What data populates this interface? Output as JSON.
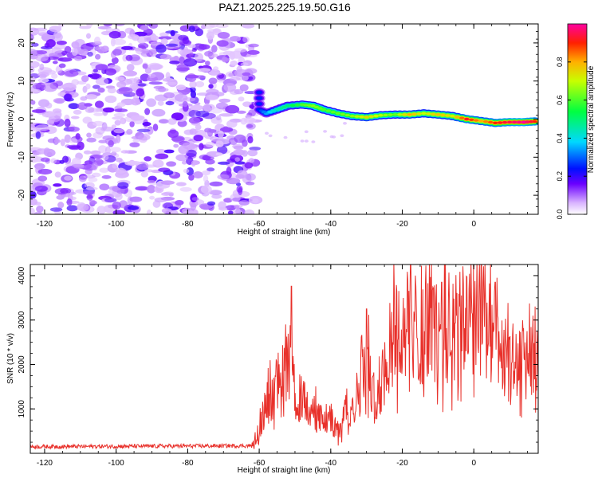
{
  "title": "PAZ1.2025.225.19.50.G16",
  "colors": {
    "snr_line": "#e8302a",
    "colormap": [
      "#ffffff",
      "#e6d3ff",
      "#c9a6ff",
      "#a066ff",
      "#7a1ff0",
      "#3300ff",
      "#0055ff",
      "#00c8ff",
      "#00ff7a",
      "#a6ff00",
      "#ffe600",
      "#ff8c00",
      "#ff2000",
      "#ff00a0"
    ]
  },
  "chart_data": [
    {
      "type": "heatmap",
      "title": "PAZ1.2025.225.19.50.G16",
      "xlabel": "Height of straight line (km)",
      "ylabel": "Frequency (Hz)",
      "xlim": [
        -124,
        18
      ],
      "ylim": [
        -25,
        25
      ],
      "xticks": [
        -120,
        -100,
        -80,
        -60,
        -40,
        -20,
        0
      ],
      "yticks": [
        -20,
        -10,
        0,
        10,
        20
      ],
      "colorbar": {
        "label": "Normalized spectral amplitude",
        "range": [
          0,
          1
        ],
        "ticks": [
          "0.0",
          "0.2",
          "0.4",
          "0.6",
          "0.8"
        ],
        "colormap": "rainbow-white (low=white/purple, high=red/magenta)"
      },
      "noise_region": {
        "x_range": [
          -124,
          -61
        ],
        "amplitude": [
          0.05,
          0.25
        ]
      },
      "signal_track": [
        {
          "x": -60,
          "freq": 7.0,
          "amp": 0.25
        },
        {
          "x": -60,
          "freq": 2.5,
          "amp": 0.25
        },
        {
          "x": -58,
          "freq": 1.5,
          "amp": 0.35
        },
        {
          "x": -55,
          "freq": 2.5,
          "amp": 0.45
        },
        {
          "x": -52,
          "freq": 3.5,
          "amp": 0.5
        },
        {
          "x": -48,
          "freq": 3.8,
          "amp": 0.6
        },
        {
          "x": -45,
          "freq": 3.5,
          "amp": 0.65
        },
        {
          "x": -42,
          "freq": 2.5,
          "amp": 0.6
        },
        {
          "x": -38,
          "freq": 1.5,
          "amp": 0.62
        },
        {
          "x": -34,
          "freq": 0.8,
          "amp": 0.65
        },
        {
          "x": -30,
          "freq": 0.5,
          "amp": 0.75
        },
        {
          "x": -26,
          "freq": 1.0,
          "amp": 0.68
        },
        {
          "x": -22,
          "freq": 1.2,
          "amp": 0.62
        },
        {
          "x": -18,
          "freq": 1.2,
          "amp": 0.8
        },
        {
          "x": -14,
          "freq": 1.5,
          "amp": 0.7
        },
        {
          "x": -10,
          "freq": 1.2,
          "amp": 0.78
        },
        {
          "x": -6,
          "freq": 0.8,
          "amp": 0.72
        },
        {
          "x": -2,
          "freq": 0.0,
          "amp": 0.92
        },
        {
          "x": 2,
          "freq": -0.5,
          "amp": 0.8
        },
        {
          "x": 6,
          "freq": -1.0,
          "amp": 0.9
        },
        {
          "x": 10,
          "freq": -0.8,
          "amp": 0.95
        },
        {
          "x": 14,
          "freq": -0.8,
          "amp": 1.0
        },
        {
          "x": 17,
          "freq": -0.6,
          "amp": 0.9
        }
      ]
    },
    {
      "type": "line",
      "xlabel": "Height of straight line (km)",
      "ylabel": "SNR (10 * v/v)",
      "xlim": [
        -124,
        18
      ],
      "ylim": [
        0,
        4250
      ],
      "xticks": [
        -120,
        -100,
        -80,
        -60,
        -40,
        -20,
        0
      ],
      "yticks": [
        1000,
        2000,
        3000,
        4000
      ],
      "series": [
        {
          "x": [
            -124,
            -62,
            -60,
            -58,
            -56,
            -54,
            -52,
            -50,
            -48,
            -46,
            -44,
            -42,
            -40,
            -38,
            -36,
            -34,
            -32,
            -30,
            -28,
            -26,
            -24,
            -22,
            -20,
            -18,
            -16,
            -14,
            -12,
            -10,
            -8,
            -6,
            -4,
            -2,
            0,
            2,
            4,
            6,
            8,
            10,
            12,
            14,
            16,
            18
          ],
          "values": [
            150,
            170,
            550,
            1100,
            1400,
            1700,
            2300,
            1300,
            1200,
            1000,
            900,
            700,
            750,
            500,
            900,
            1100,
            1400,
            2700,
            1300,
            1500,
            2200,
            2900,
            2600,
            3000,
            2800,
            2700,
            3200,
            2500,
            3300,
            3000,
            2800,
            3100,
            3400,
            3600,
            2700,
            2500,
            2000,
            2100,
            2000,
            2100,
            2200,
            2400
          ],
          "peaks": [
            {
              "x": -51,
              "y": 3760
            },
            {
              "x": -30,
              "y": 3250
            },
            {
              "x": -9,
              "y": 3850
            },
            {
              "x": 2,
              "y": 4200
            },
            {
              "x": 6,
              "y": 3850
            }
          ]
        }
      ]
    }
  ]
}
